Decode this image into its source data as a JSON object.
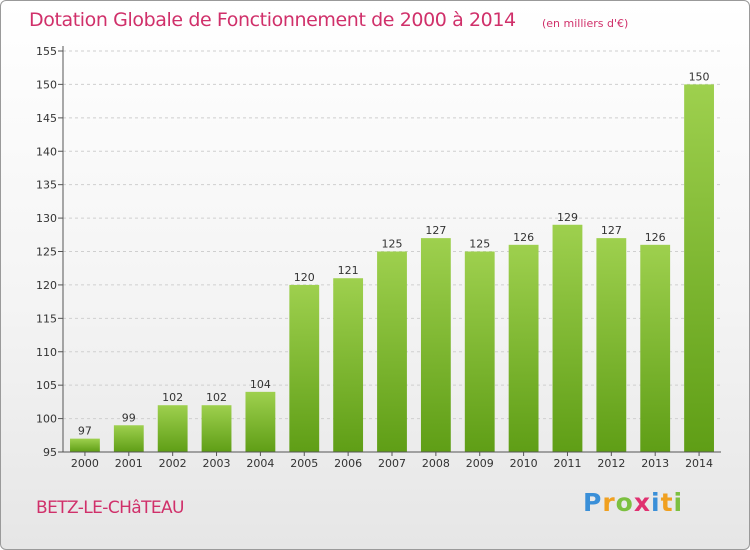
{
  "title": "Dotation Globale de Fonctionnement de 2000 à 2014",
  "unit_note": "(en milliers d'€)",
  "commune": "BETZ-LE-CHâTEAU",
  "logo": {
    "text": "Proxiti",
    "letters": [
      {
        "ch": "P",
        "color": "#3a8fd8"
      },
      {
        "ch": "r",
        "color": "#f0a020"
      },
      {
        "ch": "o",
        "color": "#7cc040"
      },
      {
        "ch": "x",
        "color": "#e03070"
      },
      {
        "ch": "i",
        "color": "#3a8fd8"
      },
      {
        "ch": "t",
        "color": "#f0a020"
      },
      {
        "ch": "i",
        "color": "#7cc040"
      }
    ]
  },
  "chart_data": {
    "type": "bar",
    "categories": [
      "2000",
      "2001",
      "2002",
      "2003",
      "2004",
      "2005",
      "2006",
      "2007",
      "2008",
      "2009",
      "2010",
      "2011",
      "2012",
      "2013",
      "2014"
    ],
    "values": [
      97,
      99,
      102,
      102,
      104,
      120,
      121,
      125,
      127,
      125,
      126,
      129,
      127,
      126,
      150
    ],
    "ylim": [
      95,
      155
    ],
    "yticks": [
      95,
      100,
      105,
      110,
      115,
      120,
      125,
      130,
      135,
      140,
      145,
      150,
      155
    ],
    "grid": true,
    "legend": "none",
    "bar_color_top": "#9ed04e",
    "bar_color_bottom": "#5f9e16"
  }
}
